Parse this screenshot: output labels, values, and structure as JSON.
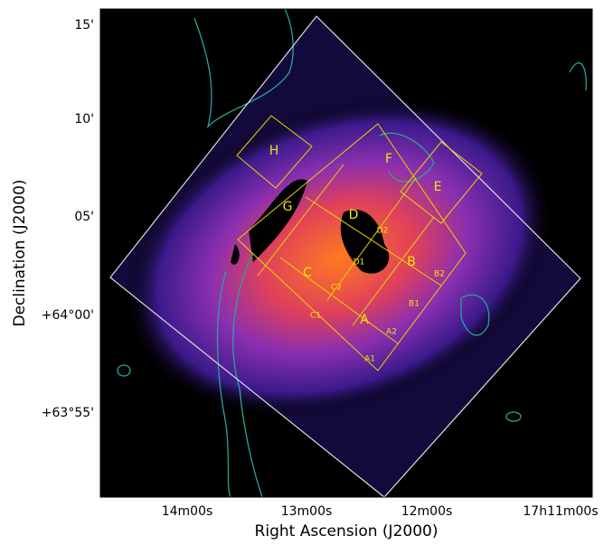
{
  "axes": {
    "x_label": "Right Ascension (J2000)",
    "y_label": "Declination (J2000)",
    "x_ticks": [
      "14m00s",
      "13m00s",
      "12m00s",
      "17h11m00s"
    ],
    "y_ticks": [
      "15'",
      "10'",
      "05'",
      "+64°00'",
      "+63°55'"
    ]
  },
  "regions": [
    "H",
    "G",
    "F",
    "E",
    "D",
    "D2",
    "D1",
    "B",
    "B2",
    "C",
    "C2",
    "B1",
    "C1",
    "A",
    "A2",
    "A1"
  ]
}
